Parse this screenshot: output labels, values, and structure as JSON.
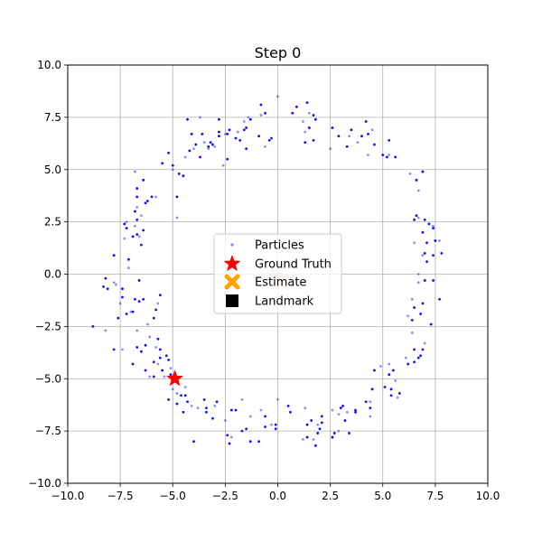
{
  "chart_data": {
    "type": "scatter",
    "title": "Step 0",
    "xlabel": "",
    "ylabel": "",
    "xlim": [
      -10,
      10
    ],
    "ylim": [
      -10,
      10
    ],
    "xticks": [
      -10,
      -7.5,
      -5,
      -2.5,
      0,
      2.5,
      5,
      7.5,
      10
    ],
    "yticks": [
      -10,
      -7.5,
      -5,
      -2.5,
      0,
      2.5,
      5,
      7.5,
      10
    ],
    "xtick_labels": [
      "−10.0",
      "−7.5",
      "−5.0",
      "−2.5",
      "0.0",
      "2.5",
      "5.0",
      "7.5",
      "10.0"
    ],
    "ytick_labels": [
      "−10.0",
      "−7.5",
      "−5.0",
      "−2.5",
      "0.0",
      "2.5",
      "5.0",
      "7.5",
      "10.0"
    ],
    "grid": true,
    "legend_position": "center",
    "colors": {
      "particles": "#0000ff",
      "ground_truth": "#ff0000",
      "estimate": "#ffa500",
      "landmark": "#000000",
      "grid": "#b0b0b0"
    },
    "series": [
      {
        "name": "Particles",
        "marker": "dot",
        "points": [
          [
            0.0,
            8.5
          ],
          [
            0.9,
            8.0
          ],
          [
            1.4,
            8.2
          ],
          [
            1.5,
            7.7
          ],
          [
            1.7,
            7.6
          ],
          [
            1.8,
            7.4
          ],
          [
            1.2,
            7.3
          ],
          [
            0.7,
            7.7
          ],
          [
            1.5,
            7.0
          ],
          [
            1.3,
            6.8
          ],
          [
            1.3,
            6.3
          ],
          [
            1.7,
            6.4
          ],
          [
            2.5,
            6.0
          ],
          [
            2.6,
            7.0
          ],
          [
            2.9,
            6.6
          ],
          [
            3.4,
            6.6
          ],
          [
            3.5,
            6.9
          ],
          [
            3.3,
            6.1
          ],
          [
            3.8,
            6.3
          ],
          [
            4.0,
            6.6
          ],
          [
            4.2,
            7.3
          ],
          [
            4.5,
            6.9
          ],
          [
            4.3,
            6.7
          ],
          [
            4.6,
            6.2
          ],
          [
            4.3,
            5.7
          ],
          [
            5.0,
            5.7
          ],
          [
            5.2,
            5.6
          ],
          [
            5.3,
            5.7
          ],
          [
            5.6,
            5.6
          ],
          [
            5.3,
            6.4
          ],
          [
            6.3,
            4.8
          ],
          [
            6.6,
            4.5
          ],
          [
            6.9,
            4.9
          ],
          [
            6.7,
            4.0
          ],
          [
            6.5,
            2.6
          ],
          [
            6.6,
            2.8
          ],
          [
            6.7,
            2.7
          ],
          [
            7.0,
            2.6
          ],
          [
            7.2,
            2.4
          ],
          [
            7.4,
            2.3
          ],
          [
            7.4,
            2.2
          ],
          [
            7.5,
            1.6
          ],
          [
            7.7,
            1.6
          ],
          [
            7.8,
            1.0
          ],
          [
            6.9,
            2.0
          ],
          [
            6.5,
            1.5
          ],
          [
            7.1,
            1.5
          ],
          [
            7.0,
            1.0
          ],
          [
            6.9,
            0.9
          ],
          [
            7.1,
            0.6
          ],
          [
            7.4,
            0.9
          ],
          [
            6.7,
            0.0
          ],
          [
            7.0,
            -0.3
          ],
          [
            7.4,
            -0.3
          ],
          [
            6.7,
            -0.4
          ],
          [
            7.7,
            -1.2
          ],
          [
            6.9,
            -1.4
          ],
          [
            6.4,
            -1.2
          ],
          [
            6.5,
            -1.6
          ],
          [
            6.8,
            -1.9
          ],
          [
            6.2,
            -2.0
          ],
          [
            6.4,
            -2.2
          ],
          [
            7.3,
            -2.4
          ],
          [
            6.4,
            -2.8
          ],
          [
            6.5,
            -3.6
          ],
          [
            6.9,
            -3.6
          ],
          [
            7.0,
            -3.3
          ],
          [
            6.8,
            -3.9
          ],
          [
            6.7,
            -4.0
          ],
          [
            6.1,
            -4.0
          ],
          [
            6.2,
            -4.3
          ],
          [
            6.5,
            -4.2
          ],
          [
            5.3,
            -4.3
          ],
          [
            5.5,
            -4.6
          ],
          [
            5.3,
            -4.8
          ],
          [
            5.6,
            -5.1
          ],
          [
            5.4,
            -5.5
          ],
          [
            5.4,
            -5.8
          ],
          [
            5.7,
            -5.9
          ],
          [
            5.8,
            -5.7
          ],
          [
            5.1,
            -5.4
          ],
          [
            4.9,
            -4.4
          ],
          [
            4.6,
            -4.6
          ],
          [
            4.5,
            -5.5
          ],
          [
            4.4,
            -6.1
          ],
          [
            4.2,
            -6.1
          ],
          [
            4.4,
            -6.4
          ],
          [
            4.4,
            -6.8
          ],
          [
            3.7,
            -6.5
          ],
          [
            3.7,
            -6.6
          ],
          [
            3.3,
            -6.6
          ],
          [
            3.1,
            -6.3
          ],
          [
            3.0,
            -6.4
          ],
          [
            2.9,
            -6.7
          ],
          [
            3.2,
            -7.0
          ],
          [
            3.4,
            -7.6
          ],
          [
            2.9,
            -7.5
          ],
          [
            2.7,
            -7.6
          ],
          [
            2.6,
            -7.8
          ],
          [
            2.6,
            -6.5
          ],
          [
            2.1,
            -6.8
          ],
          [
            2.1,
            -7.1
          ],
          [
            1.9,
            -7.2
          ],
          [
            2.0,
            -7.4
          ],
          [
            1.9,
            -7.6
          ],
          [
            1.7,
            -7.9
          ],
          [
            1.4,
            -7.8
          ],
          [
            1.8,
            -8.2
          ],
          [
            1.2,
            -7.9
          ],
          [
            1.4,
            -7.2
          ],
          [
            1.6,
            -7.0
          ],
          [
            1.3,
            -6.4
          ],
          [
            0.5,
            -6.3
          ],
          [
            0.6,
            -6.6
          ],
          [
            0.0,
            -6.0
          ],
          [
            -0.1,
            -7.2
          ],
          [
            -0.1,
            -7.4
          ],
          [
            -0.3,
            -7.2
          ],
          [
            -0.6,
            -7.3
          ],
          [
            -0.6,
            -6.8
          ],
          [
            -0.8,
            -6.5
          ],
          [
            -0.9,
            -8.0
          ],
          [
            -1.3,
            -8.0
          ],
          [
            -1.3,
            -6.8
          ],
          [
            -1.5,
            -7.4
          ],
          [
            -1.7,
            -7.5
          ],
          [
            -1.7,
            -6.0
          ],
          [
            -2.0,
            -6.5
          ],
          [
            -2.2,
            -6.5
          ],
          [
            -2.2,
            -7.8
          ],
          [
            -2.4,
            -7.7
          ],
          [
            -2.3,
            -8.1
          ],
          [
            -2.5,
            -7.0
          ],
          [
            -2.9,
            -6.1
          ],
          [
            -3.1,
            -6.9
          ],
          [
            -3.0,
            -6.3
          ],
          [
            -3.4,
            -6.4
          ],
          [
            -3.4,
            -6.6
          ],
          [
            -3.8,
            -6.4
          ],
          [
            -3.5,
            -6.0
          ],
          [
            -4.0,
            -8.0
          ],
          [
            -4.1,
            -6.3
          ],
          [
            -4.3,
            -6.1
          ],
          [
            -4.4,
            -5.8
          ],
          [
            -4.4,
            -5.4
          ],
          [
            -4.5,
            -6.6
          ],
          [
            -4.6,
            -5.8
          ],
          [
            -4.8,
            -5.7
          ],
          [
            -4.8,
            -6.2
          ],
          [
            -5.0,
            -5.0
          ],
          [
            -5.0,
            -5.5
          ],
          [
            -5.2,
            -6.0
          ],
          [
            -5.1,
            -4.8
          ],
          [
            -5.1,
            -4.5
          ],
          [
            -5.2,
            -4.1
          ],
          [
            -5.3,
            -3.9
          ],
          [
            -5.4,
            -4.9
          ],
          [
            -5.5,
            -4.6
          ],
          [
            -5.6,
            -4.0
          ],
          [
            -5.7,
            -4.3
          ],
          [
            -5.6,
            -3.6
          ],
          [
            -5.7,
            -3.1
          ],
          [
            -5.8,
            -3.5
          ],
          [
            -5.9,
            -4.2
          ],
          [
            -5.9,
            -4.9
          ],
          [
            -6.1,
            -4.9
          ],
          [
            -6.3,
            -4.6
          ],
          [
            -6.3,
            -3.4
          ],
          [
            -6.1,
            -3.0
          ],
          [
            -6.5,
            -3.7
          ],
          [
            -6.7,
            -3.5
          ],
          [
            -6.7,
            -2.7
          ],
          [
            -6.9,
            -4.3
          ],
          [
            -6.9,
            -1.8
          ],
          [
            -7.0,
            -1.8
          ],
          [
            -7.2,
            -1.9
          ],
          [
            -6.4,
            -1.2
          ],
          [
            -6.2,
            -2.4
          ],
          [
            -5.9,
            -2.1
          ],
          [
            -5.8,
            -1.7
          ],
          [
            -5.7,
            -1.4
          ],
          [
            -5.6,
            -1.0
          ],
          [
            -6.6,
            -1.3
          ],
          [
            -7.5,
            -1.4
          ],
          [
            -7.4,
            -1.1
          ],
          [
            -7.4,
            -0.7
          ],
          [
            -7.7,
            -0.5
          ],
          [
            -8.1,
            -0.7
          ],
          [
            -8.2,
            -0.2
          ],
          [
            -7.8,
            -0.4
          ],
          [
            -7.6,
            -2.1
          ],
          [
            -8.3,
            -0.6
          ],
          [
            -8.2,
            -2.7
          ],
          [
            -7.8,
            -3.6
          ],
          [
            -8.8,
            -2.5
          ],
          [
            -7.4,
            -3.6
          ],
          [
            -6.8,
            -1.2
          ],
          [
            -6.6,
            -0.3
          ],
          [
            -7.1,
            0.3
          ],
          [
            -7.1,
            0.7
          ],
          [
            -7.8,
            0.9
          ],
          [
            -7.3,
            1.7
          ],
          [
            -7.2,
            2.2
          ],
          [
            -7.3,
            2.4
          ],
          [
            -7.2,
            2.5
          ],
          [
            -6.9,
            1.8
          ],
          [
            -6.7,
            1.9
          ],
          [
            -6.6,
            1.8
          ],
          [
            -6.4,
            2.1
          ],
          [
            -6.5,
            1.4
          ],
          [
            -6.8,
            2.3
          ],
          [
            -6.7,
            2.6
          ],
          [
            -6.8,
            3.0
          ],
          [
            -6.5,
            2.8
          ],
          [
            -6.3,
            3.4
          ],
          [
            -6.2,
            3.5
          ],
          [
            -6.7,
            3.2
          ],
          [
            -6.7,
            3.7
          ],
          [
            -6.7,
            4.1
          ],
          [
            -6.8,
            4.9
          ],
          [
            -6.4,
            4.5
          ],
          [
            -6.0,
            3.7
          ],
          [
            -5.8,
            3.7
          ],
          [
            -5.5,
            5.3
          ],
          [
            -5.2,
            5.8
          ],
          [
            -5.0,
            5.0
          ],
          [
            -5.0,
            5.2
          ],
          [
            -4.8,
            3.7
          ],
          [
            -4.8,
            2.7
          ],
          [
            -4.7,
            4.8
          ],
          [
            -4.5,
            4.7
          ],
          [
            -4.4,
            5.6
          ],
          [
            -4.2,
            5.9
          ],
          [
            -4.1,
            6.7
          ],
          [
            -4.0,
            6.0
          ],
          [
            -3.9,
            6.2
          ],
          [
            -3.7,
            5.6
          ],
          [
            -3.5,
            6.3
          ],
          [
            -3.6,
            6.7
          ],
          [
            -3.3,
            6.1
          ],
          [
            -3.3,
            6.0
          ],
          [
            -3.2,
            6.3
          ],
          [
            -3.1,
            6.2
          ],
          [
            -3.0,
            6.1
          ],
          [
            -2.8,
            6.8
          ],
          [
            -2.8,
            6.6
          ],
          [
            -2.5,
            6.7
          ],
          [
            -2.4,
            6.7
          ],
          [
            -2.4,
            5.5
          ],
          [
            -2.6,
            5.2
          ],
          [
            -2.3,
            6.9
          ],
          [
            -2.0,
            6.5
          ],
          [
            -1.9,
            6.8
          ],
          [
            -1.8,
            6.4
          ],
          [
            -1.6,
            6.9
          ],
          [
            -1.6,
            7.3
          ],
          [
            -1.5,
            7.0
          ],
          [
            -1.5,
            6.0
          ],
          [
            -1.4,
            7.5
          ],
          [
            -1.3,
            7.4
          ],
          [
            -0.9,
            6.6
          ],
          [
            -0.8,
            7.6
          ],
          [
            -0.8,
            8.1
          ],
          [
            -0.6,
            7.7
          ],
          [
            -0.6,
            6.1
          ],
          [
            -0.4,
            6.4
          ],
          [
            -0.3,
            6.5
          ],
          [
            -3.7,
            7.5
          ],
          [
            -4.3,
            7.4
          ],
          [
            -2.8,
            7.4
          ]
        ]
      },
      {
        "name": "Ground Truth",
        "marker": "star",
        "points": [
          [
            -4.9,
            -5.0
          ]
        ]
      },
      {
        "name": "Estimate",
        "marker": "x",
        "points": [
          [
            0.2,
            -0.4
          ]
        ]
      },
      {
        "name": "Landmark",
        "marker": "square",
        "points": [
          [
            0.0,
            0.0
          ]
        ]
      }
    ]
  }
}
